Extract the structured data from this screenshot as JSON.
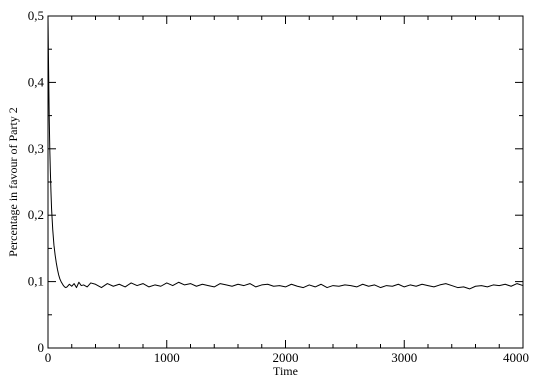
{
  "chart_data": {
    "type": "line",
    "title": "",
    "xlabel": "Time",
    "ylabel": "Percentage in favour of Party 2",
    "xlim": [
      0,
      4000
    ],
    "ylim": [
      0,
      0.5
    ],
    "grid": false,
    "legend": "none",
    "x_ticks": [
      {
        "value": 0,
        "label": "0"
      },
      {
        "value": 1000,
        "label": "1000"
      },
      {
        "value": 2000,
        "label": "2000"
      },
      {
        "value": 3000,
        "label": "3000"
      },
      {
        "value": 4000,
        "label": "4000"
      }
    ],
    "y_ticks": [
      {
        "value": 0,
        "label": "0"
      },
      {
        "value": 0.1,
        "label": "0,1"
      },
      {
        "value": 0.2,
        "label": "0,2"
      },
      {
        "value": 0.3,
        "label": "0,3"
      },
      {
        "value": 0.4,
        "label": "0,4"
      },
      {
        "value": 0.5,
        "label": "0,5"
      }
    ],
    "x_minor_step": 200,
    "y_minor_step": 0.05,
    "line_color": "#000000",
    "series": [
      {
        "x": [
          0,
          5,
          10,
          15,
          20,
          25,
          30,
          40,
          50,
          60,
          70,
          80,
          90,
          100,
          110,
          120,
          130,
          140,
          150,
          160,
          180,
          200,
          220,
          240,
          260,
          280,
          300,
          330,
          360,
          400,
          450,
          500,
          550,
          600,
          650,
          700,
          750,
          800,
          850,
          900,
          950,
          1000,
          1050,
          1100,
          1150,
          1200,
          1250,
          1300,
          1350,
          1400,
          1450,
          1500,
          1550,
          1600,
          1650,
          1700,
          1750,
          1800,
          1850,
          1900,
          1950,
          2000,
          2050,
          2100,
          2150,
          2200,
          2250,
          2300,
          2350,
          2400,
          2450,
          2500,
          2550,
          2600,
          2650,
          2700,
          2750,
          2800,
          2850,
          2900,
          2950,
          3000,
          3050,
          3100,
          3150,
          3200,
          3250,
          3300,
          3350,
          3400,
          3450,
          3500,
          3550,
          3600,
          3650,
          3700,
          3750,
          3800,
          3850,
          3900,
          3950,
          4000
        ],
        "y": [
          0.5,
          0.42,
          0.35,
          0.3,
          0.265,
          0.235,
          0.21,
          0.178,
          0.155,
          0.14,
          0.128,
          0.118,
          0.11,
          0.104,
          0.1,
          0.097,
          0.094,
          0.092,
          0.091,
          0.092,
          0.096,
          0.093,
          0.097,
          0.091,
          0.099,
          0.094,
          0.095,
          0.092,
          0.098,
          0.096,
          0.091,
          0.097,
          0.093,
          0.096,
          0.092,
          0.098,
          0.094,
          0.097,
          0.092,
          0.095,
          0.093,
          0.098,
          0.094,
          0.099,
          0.095,
          0.097,
          0.093,
          0.096,
          0.094,
          0.092,
          0.097,
          0.095,
          0.093,
          0.096,
          0.094,
          0.097,
          0.092,
          0.095,
          0.096,
          0.093,
          0.094,
          0.092,
          0.096,
          0.093,
          0.091,
          0.095,
          0.092,
          0.096,
          0.091,
          0.094,
          0.093,
          0.095,
          0.094,
          0.092,
          0.096,
          0.093,
          0.095,
          0.091,
          0.094,
          0.093,
          0.096,
          0.092,
          0.095,
          0.093,
          0.096,
          0.094,
          0.092,
          0.095,
          0.097,
          0.094,
          0.091,
          0.092,
          0.089,
          0.093,
          0.094,
          0.092,
          0.095,
          0.094,
          0.096,
          0.093,
          0.097,
          0.094
        ]
      }
    ]
  }
}
